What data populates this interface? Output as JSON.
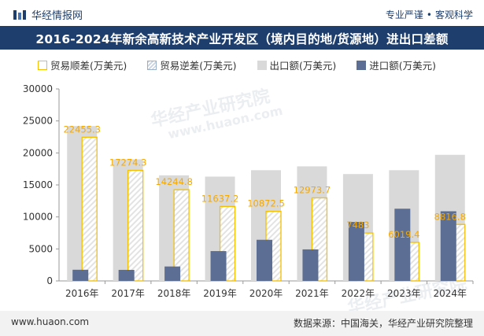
{
  "header": {
    "brand": "华经情报网",
    "tagline_left": "专业严谨",
    "tagline_sep": "•",
    "tagline_right": "客观科学"
  },
  "title": "2016-2024年新余高新技术产业开发区（境内目的地/货源地）进出口差额",
  "legend": {
    "surplus": "贸易顺差(万美元)",
    "deficit": "贸易逆差(万美元)",
    "export": "出口额(万美元)",
    "import": "进口额(万美元)"
  },
  "watermark": {
    "cn": "华经产业研究院",
    "en": "www.huaon.com"
  },
  "colors": {
    "header_bg": "#1e3f6e",
    "export": "#d9d9d9",
    "import": "#5c6e93",
    "surplus": "#f5c000",
    "deficit_hatch": "#c8d4e2"
  },
  "footer": {
    "url": "www.huaon.com",
    "source": "数据来源：中国海关，华经产业研究院整理"
  },
  "chart_data": {
    "type": "bar",
    "categories": [
      "2016年",
      "2017年",
      "2018年",
      "2019年",
      "2020年",
      "2021年",
      "2022年",
      "2023年",
      "2024年"
    ],
    "series": [
      {
        "name": "出口额(万美元)",
        "values": [
          24200,
          19000,
          16500,
          16300,
          17300,
          17900,
          16700,
          17300,
          19700
        ]
      },
      {
        "name": "进口额(万美元)",
        "values": [
          1745,
          1726,
          2255,
          4663,
          6428,
          4926,
          9217,
          11281,
          10883
        ]
      },
      {
        "name": "贸易顺差(万美元)",
        "values": [
          22455.3,
          17274.3,
          14244.8,
          11637.2,
          10872.5,
          12973.7,
          7483,
          6019.4,
          8816.8
        ]
      }
    ],
    "data_labels": [
      "22455.3",
      "17274.3",
      "14244.8",
      "11637.2",
      "10872.5",
      "12973.7",
      "7483",
      "6019.4",
      "8816.8"
    ],
    "yticks": [
      "0",
      "5000",
      "10000",
      "15000",
      "20000",
      "25000",
      "30000"
    ],
    "ylim": [
      0,
      30000
    ],
    "grid": false,
    "legend_position": "top"
  }
}
